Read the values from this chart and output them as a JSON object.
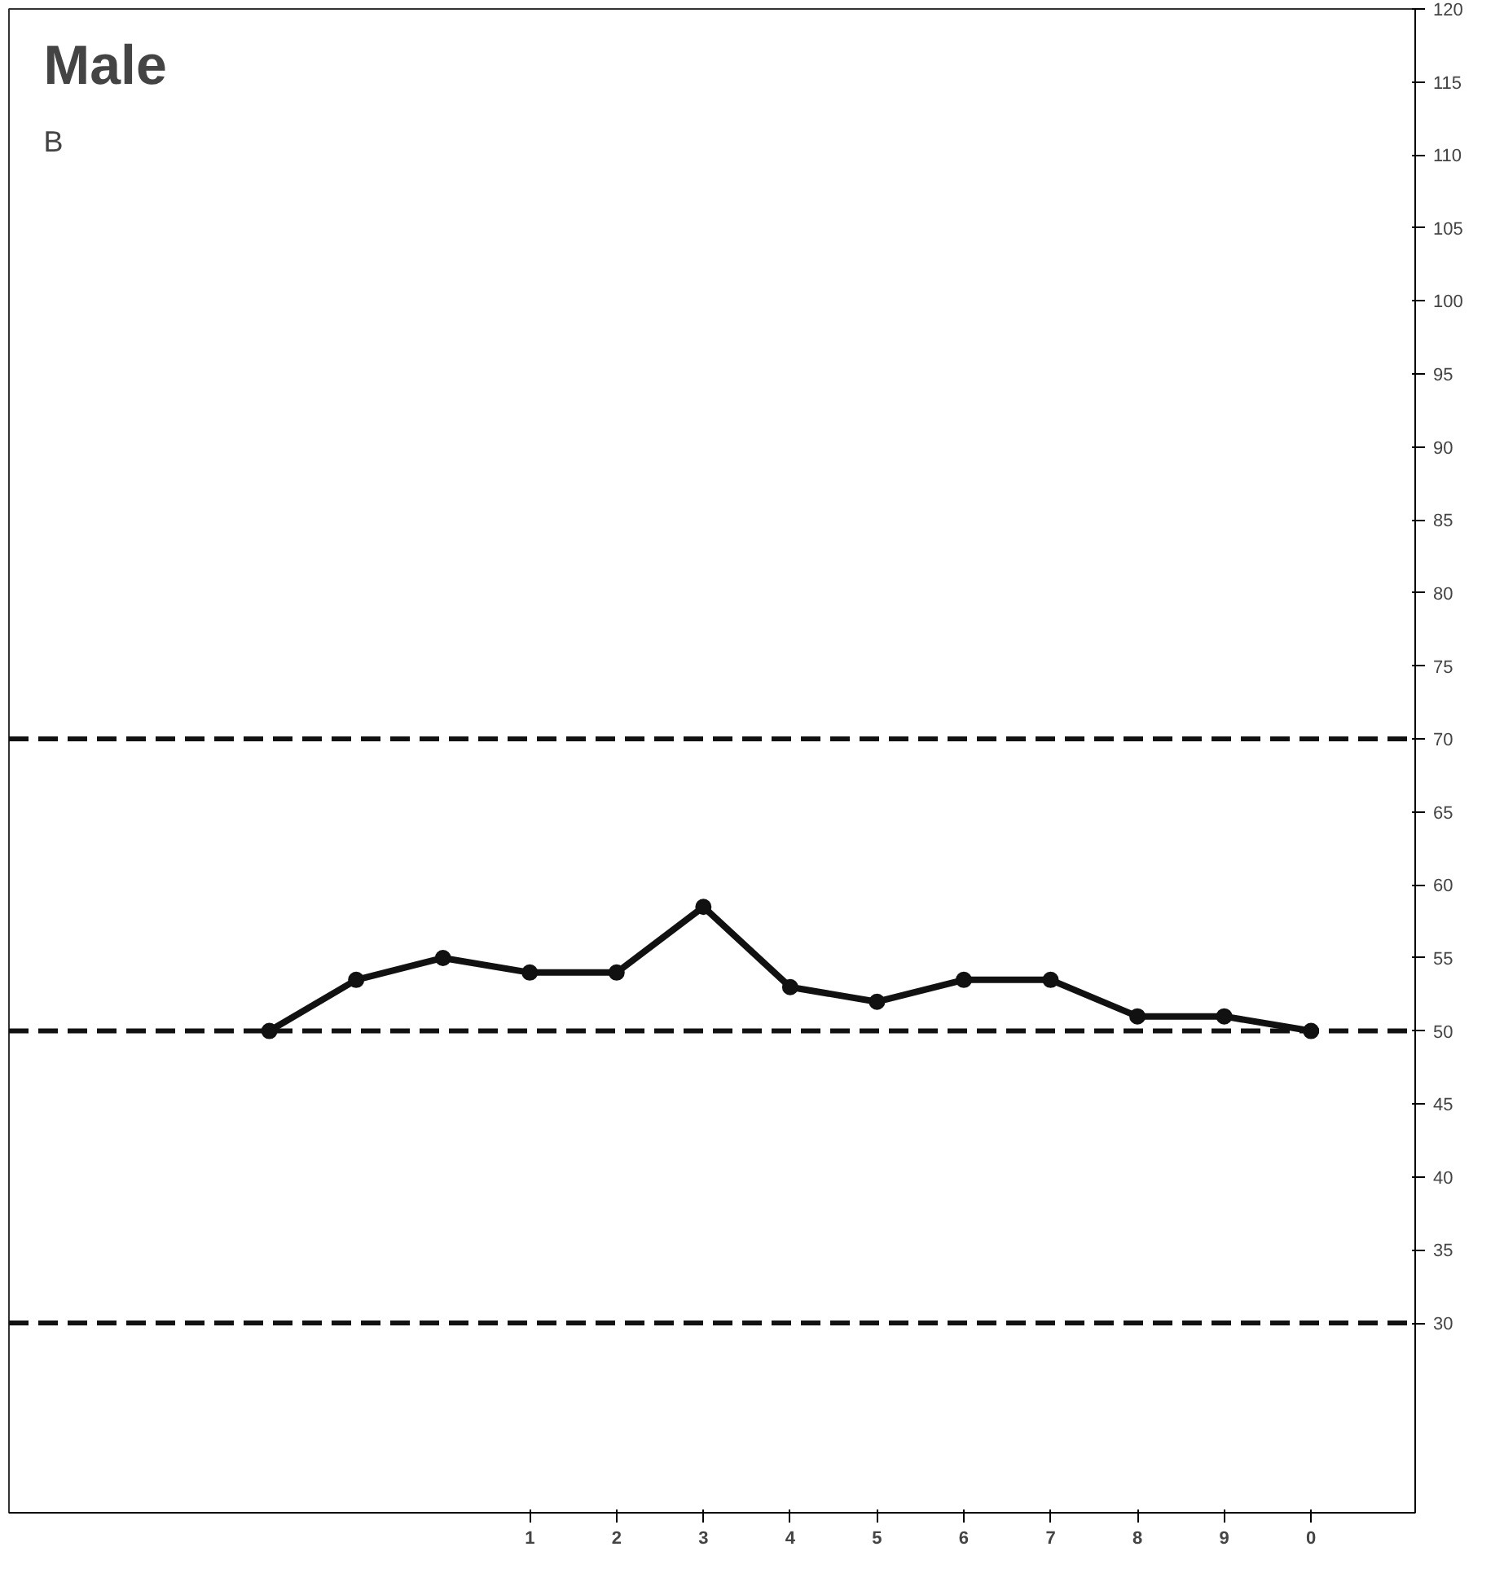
{
  "chart_data": {
    "type": "line",
    "categories": [
      null,
      null,
      null,
      "1",
      "2",
      "3",
      "4",
      "5",
      "6",
      "7",
      "8",
      "9",
      "0"
    ],
    "series": [
      {
        "color": "#111111",
        "values": [
          50,
          53.5,
          55,
          54,
          54,
          58.5,
          53,
          52,
          53.5,
          53.5,
          51,
          51,
          50
        ]
      }
    ],
    "ylim": [
      17,
      120
    ],
    "yticks": [
      30,
      35,
      40,
      45,
      50,
      55,
      60,
      65,
      70,
      75,
      80,
      85,
      90,
      95,
      100,
      105,
      110,
      115,
      120
    ],
    "ref_lines": [
      {
        "axis": "y",
        "value": 70,
        "label": null,
        "line_style": "dashed",
        "color": "#111111"
      },
      {
        "axis": "y",
        "value": 50,
        "label": null,
        "line_style": "dashed",
        "color": "#111111"
      },
      {
        "axis": "y",
        "value": 30,
        "label": null,
        "line_style": "dashed",
        "color": "#111111"
      }
    ],
    "annotations": [
      "Male",
      "B"
    ],
    "marker": "circle",
    "line_style": "solid",
    "grid": false
  }
}
